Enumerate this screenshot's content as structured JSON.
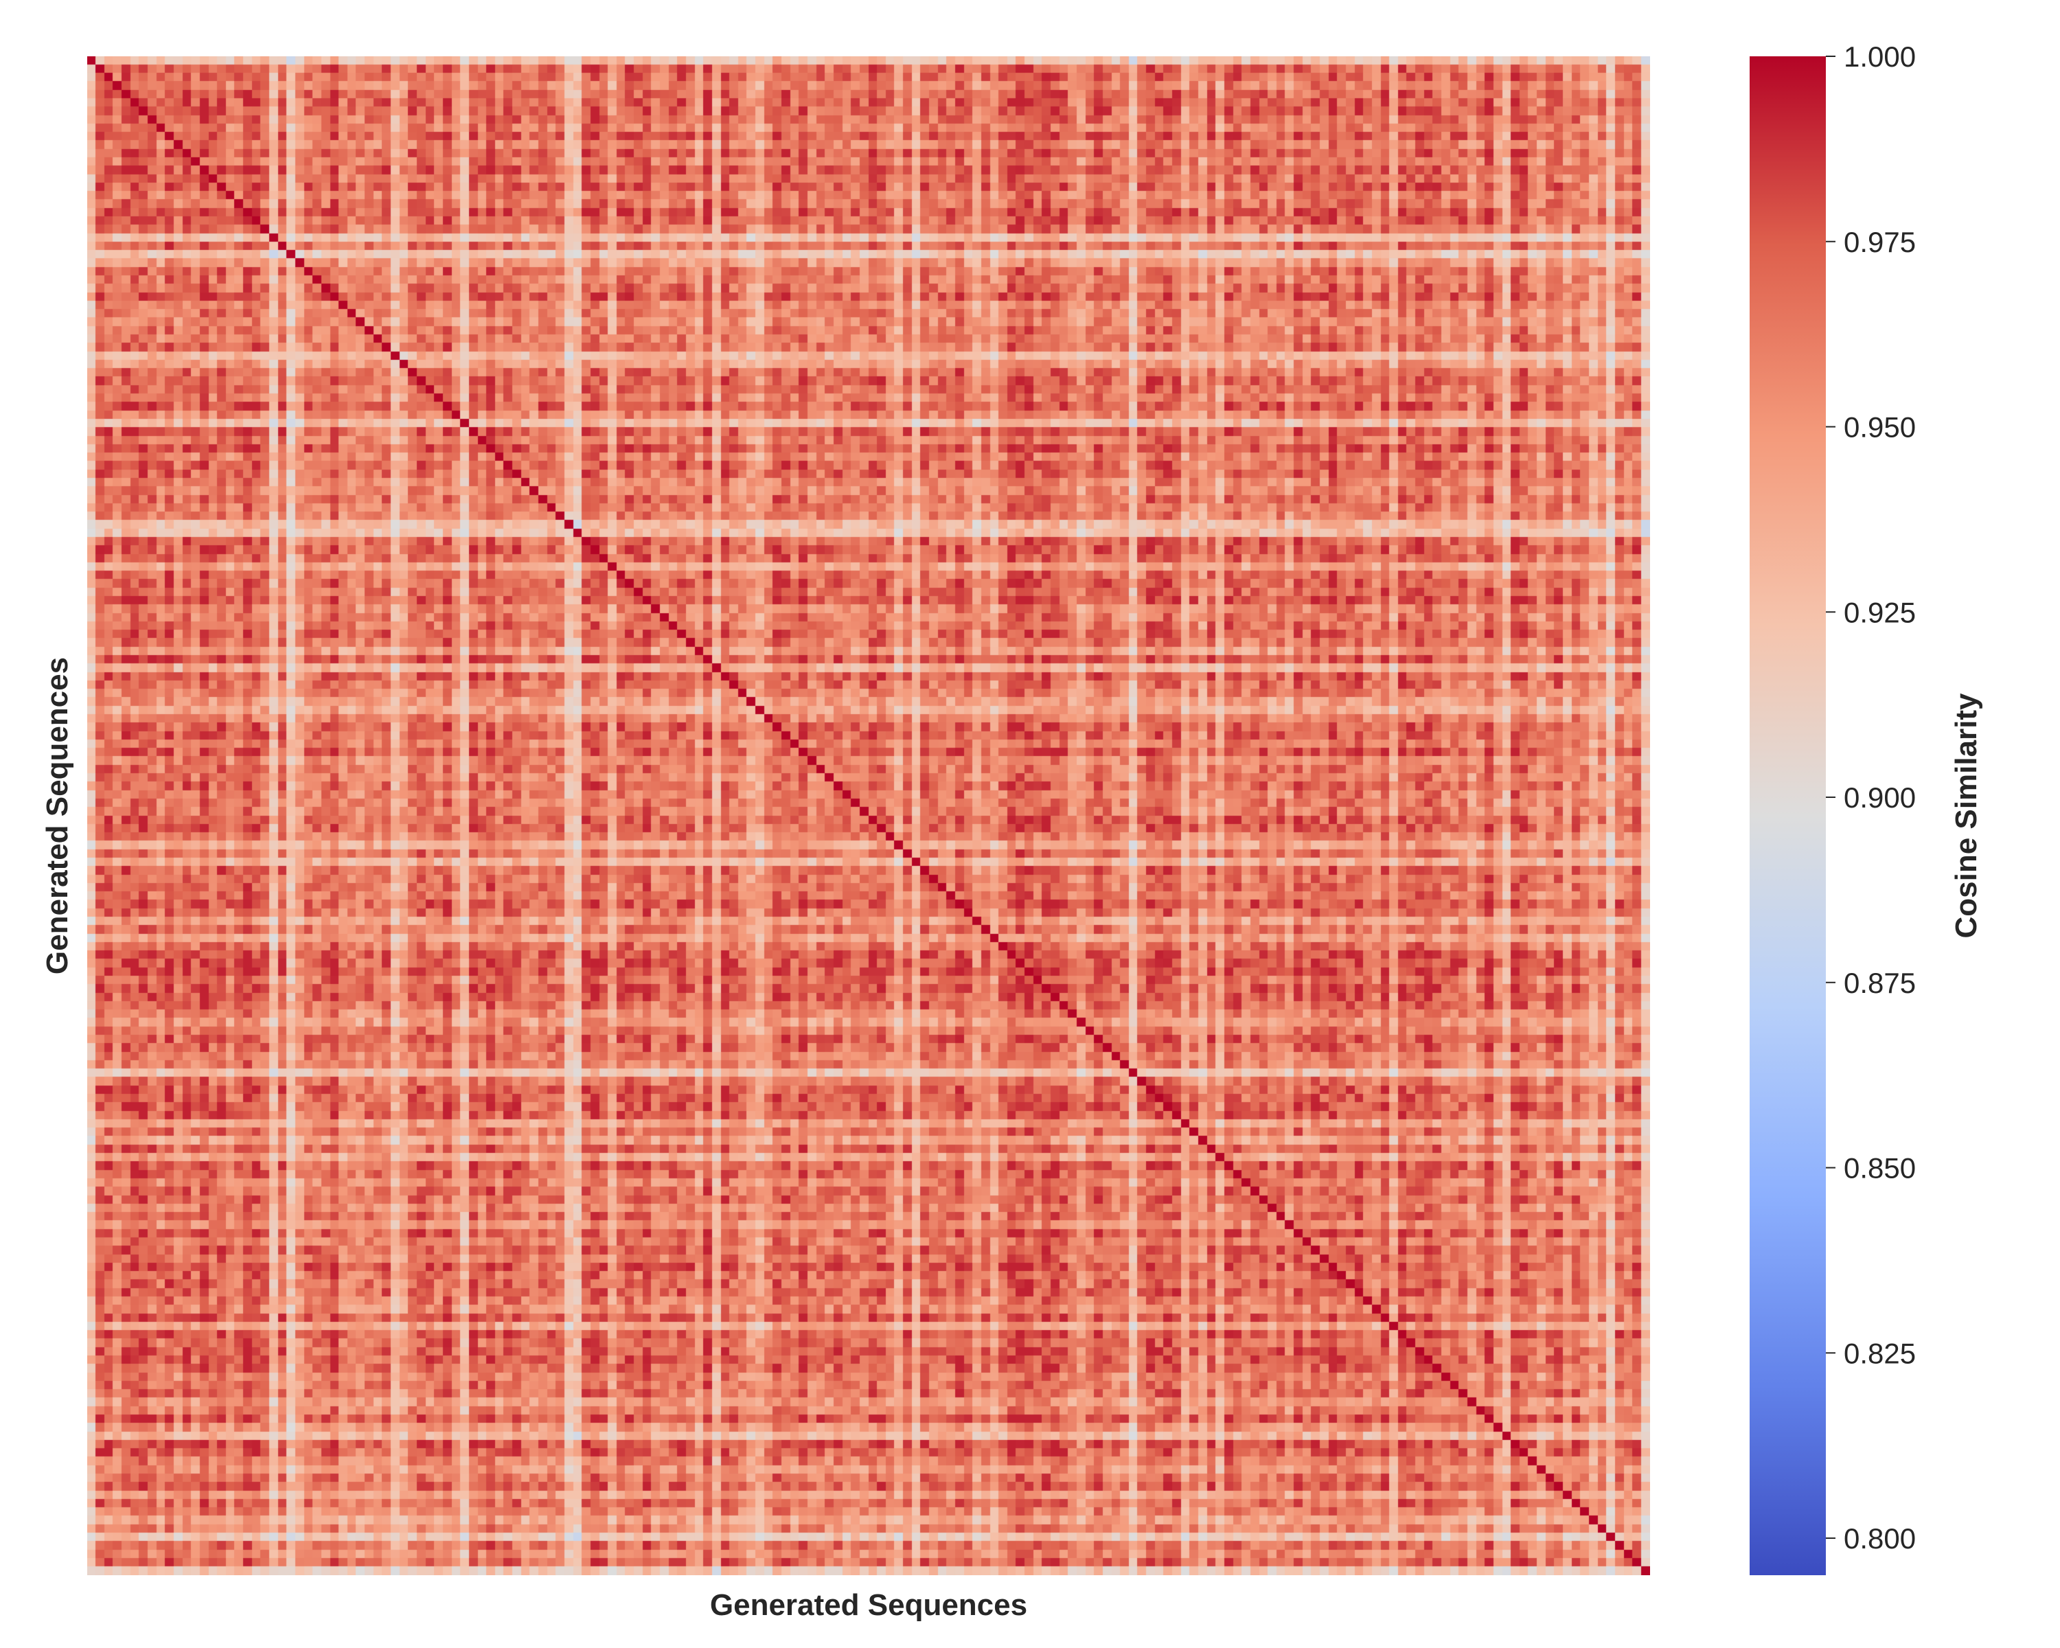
{
  "chart_data": {
    "type": "heatmap",
    "title": "",
    "xlabel": "Generated Sequences",
    "ylabel": "Generated Sequences",
    "matrix_size": 180,
    "diagonal_value": 1.0,
    "off_diagonal_typical_range": [
      0.88,
      0.99
    ],
    "off_diagonal_mean": 0.955,
    "low_similarity_sequence_indices": [
      0,
      21,
      23,
      35,
      43,
      55,
      56,
      72,
      95,
      120,
      163,
      175,
      179
    ],
    "colormap": "coolwarm",
    "colorbar": {
      "label": "Cosine Similarity",
      "vmin": 0.795,
      "vmax": 1.0,
      "ticks": [
        0.8,
        0.825,
        0.85,
        0.875,
        0.9,
        0.925,
        0.95,
        0.975,
        1.0
      ],
      "tick_labels": [
        "0.800",
        "0.825",
        "0.850",
        "0.875",
        "0.900",
        "0.925",
        "0.950",
        "0.975",
        "1.000"
      ]
    },
    "grid": false,
    "axis_ticks": "hidden"
  }
}
